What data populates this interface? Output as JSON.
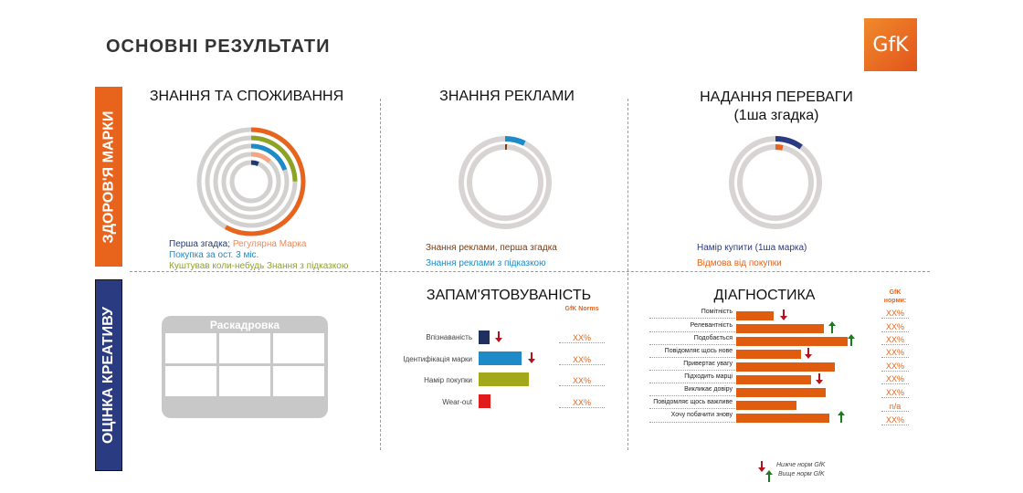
{
  "page": {
    "title": "ОСНОВНІ  РЕЗУЛЬТАТИ",
    "logo_text": "GfK"
  },
  "side_tabs": {
    "health": "ЗДОРОВ'Я МАРКИ",
    "creative": "ОЦІНКА КРЕАТИВУ"
  },
  "colors": {
    "orange": "#e8641c",
    "navy": "#2a3b82",
    "blue": "#1f8ac8",
    "olive": "#8ea323",
    "gray": "#d9d4d4",
    "red": "#e11b1b"
  },
  "awareness": {
    "title": "ЗНАННЯ ТА СПОЖИВАННЯ",
    "legend_first": "Перша згадка;",
    "legend_regular": "Регулярна Марка",
    "legend_purchase": "Покупка за ост. 3 міс.",
    "legend_tried": "Куштував коли-небудь Знання  з підказкою"
  },
  "ad_awareness": {
    "title": "ЗНАННЯ РЕКЛАМИ",
    "legend_first": "Знання реклами, перша згадка",
    "legend_prompted": "Знання реклами з підказкою"
  },
  "preference": {
    "title": "НАДАННЯ ПЕРЕВАГИ",
    "subtitle": "(1ша згадка)",
    "legend_intent": "Намір купити (1ша марка)",
    "legend_refusal": "Відмова від покупки"
  },
  "storyboard": {
    "title": "Раскадровка"
  },
  "memorability": {
    "title": "ЗАПАМ'ЯТОВУВАНІСТЬ",
    "norms_header": "GfK Norms",
    "rows": [
      {
        "label": "Впізнаваність",
        "norm": "XX%"
      },
      {
        "label": "Ідентифікація марки",
        "norm": "XX%"
      },
      {
        "label": "Намір покупки",
        "norm": "XX%"
      },
      {
        "label": "Wear-out",
        "norm": "XX%"
      }
    ]
  },
  "diagnostics": {
    "title": "ДІАГНОСТИКА",
    "norms_header": "GfK норми:",
    "rows": [
      {
        "label": "Помітність",
        "norm": "XX%"
      },
      {
        "label": "Релевантність",
        "norm": "XX%"
      },
      {
        "label": "Подобається",
        "norm": "XX%"
      },
      {
        "label": "Повідомляє щось нове",
        "norm": "XX%"
      },
      {
        "label": "Привертає  увагу",
        "norm": "XX%"
      },
      {
        "label": "Підходить марці",
        "norm": "XX%"
      },
      {
        "label": "Викликає довіру",
        "norm": "XX%"
      },
      {
        "label": "Повідомляє щось важливе",
        "norm": "n/a"
      },
      {
        "label": "Хочу побачити знову",
        "norm": "XX%"
      }
    ]
  },
  "arrow_legend": {
    "below": "Нижче  норм  GfK",
    "above": "Вище  норм  GfK"
  }
}
